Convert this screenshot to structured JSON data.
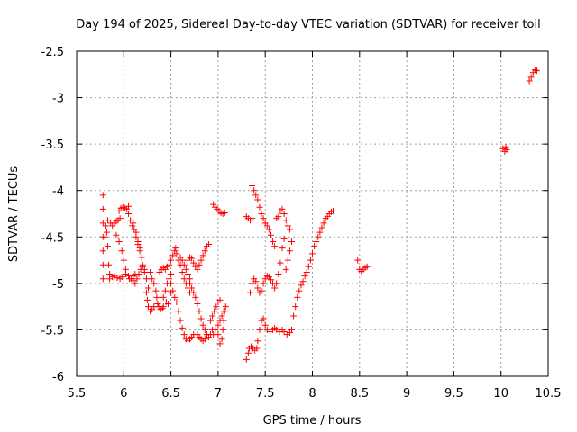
{
  "chart_data": {
    "type": "scatter",
    "title": "Day 194 of 2025, Sidereal Day-to-day VTEC variation (SDTVAR) for receiver toil",
    "xlabel": "GPS time / hours",
    "ylabel": "SDTVAR / TECUs",
    "xlim": [
      5.5,
      10.5
    ],
    "ylim": [
      -6,
      -2.5
    ],
    "x_ticks": [
      5.5,
      6,
      6.5,
      7,
      7.5,
      8,
      8.5,
      9,
      9.5,
      10,
      10.5
    ],
    "y_ticks": [
      -6,
      -5.5,
      -5,
      -4.5,
      -4,
      -3.5,
      -3,
      -2.5
    ],
    "x_tick_labels": [
      "5.5",
      "6",
      "6.5",
      "7",
      "7.5",
      "8",
      "8.5",
      "9",
      "9.5",
      "10",
      "10.5"
    ],
    "y_tick_labels": [
      "-6",
      "-5.5",
      "-5",
      "-4.5",
      "-4",
      "-3.5",
      "-3",
      "-2.5"
    ],
    "grid": true,
    "marker": "plus",
    "marker_color": "#ff0000",
    "series": [
      {
        "values": [
          [
            5.78,
            -4.05
          ],
          [
            5.78,
            -4.2
          ],
          [
            5.78,
            -4.35
          ],
          [
            5.78,
            -4.5
          ],
          [
            5.78,
            -4.65
          ],
          [
            5.78,
            -4.8
          ],
          [
            5.78,
            -4.95
          ],
          [
            5.8,
            -4.5
          ],
          [
            5.81,
            -4.38
          ],
          [
            5.82,
            -4.45
          ],
          [
            5.83,
            -4.6
          ],
          [
            5.84,
            -4.8
          ],
          [
            5.85,
            -4.9
          ],
          [
            5.83,
            -4.32
          ],
          [
            5.86,
            -4.35
          ],
          [
            5.88,
            -4.38
          ],
          [
            5.9,
            -4.35
          ],
          [
            5.92,
            -4.33
          ],
          [
            5.94,
            -4.32
          ],
          [
            5.96,
            -4.3
          ],
          [
            5.85,
            -4.95
          ],
          [
            5.88,
            -4.93
          ],
          [
            5.9,
            -4.92
          ],
          [
            5.93,
            -4.94
          ],
          [
            5.96,
            -4.95
          ],
          [
            5.98,
            -4.93
          ],
          [
            5.95,
            -4.22
          ],
          [
            5.97,
            -4.19
          ],
          [
            5.99,
            -4.18
          ],
          [
            6.01,
            -4.19
          ],
          [
            6.03,
            -4.2
          ],
          [
            6.05,
            -4.17
          ],
          [
            5.92,
            -4.48
          ],
          [
            5.95,
            -4.55
          ],
          [
            5.98,
            -4.65
          ],
          [
            6.0,
            -4.75
          ],
          [
            6.02,
            -4.85
          ],
          [
            6.05,
            -4.92
          ],
          [
            6.08,
            -4.95
          ],
          [
            6.1,
            -4.97
          ],
          [
            6.02,
            -4.9
          ],
          [
            6.06,
            -4.95
          ],
          [
            6.1,
            -4.92
          ],
          [
            6.12,
            -4.9
          ],
          [
            6.05,
            -4.25
          ],
          [
            6.07,
            -4.32
          ],
          [
            6.09,
            -4.38
          ],
          [
            6.11,
            -4.42
          ],
          [
            6.13,
            -4.5
          ],
          [
            6.15,
            -4.58
          ],
          [
            6.17,
            -4.65
          ],
          [
            6.19,
            -4.72
          ],
          [
            6.2,
            -4.8
          ],
          [
            6.22,
            -4.88
          ],
          [
            6.24,
            -4.95
          ],
          [
            6.26,
            -5.05
          ],
          [
            6.1,
            -4.35
          ],
          [
            6.13,
            -4.45
          ],
          [
            6.15,
            -4.55
          ],
          [
            6.17,
            -4.62
          ],
          [
            6.12,
            -5.0
          ],
          [
            6.14,
            -4.95
          ],
          [
            6.16,
            -4.9
          ],
          [
            6.18,
            -4.85
          ],
          [
            6.2,
            -4.82
          ],
          [
            6.22,
            -4.85
          ],
          [
            6.24,
            -5.1
          ],
          [
            6.25,
            -5.18
          ],
          [
            6.26,
            -5.25
          ],
          [
            6.28,
            -5.3
          ],
          [
            6.3,
            -5.28
          ],
          [
            6.32,
            -5.25
          ],
          [
            6.28,
            -4.88
          ],
          [
            6.3,
            -4.95
          ],
          [
            6.32,
            -5.0
          ],
          [
            6.34,
            -5.08
          ],
          [
            6.35,
            -5.15
          ],
          [
            6.36,
            -5.22
          ],
          [
            6.37,
            -5.25
          ],
          [
            6.39,
            -5.28
          ],
          [
            6.41,
            -5.27
          ],
          [
            6.42,
            -5.25
          ],
          [
            6.38,
            -4.88
          ],
          [
            6.4,
            -4.85
          ],
          [
            6.42,
            -4.83
          ],
          [
            6.44,
            -4.85
          ],
          [
            6.46,
            -4.82
          ],
          [
            6.48,
            -4.8
          ],
          [
            6.42,
            -5.15
          ],
          [
            6.44,
            -5.08
          ],
          [
            6.46,
            -5.0
          ],
          [
            6.48,
            -4.95
          ],
          [
            6.5,
            -4.9
          ],
          [
            6.45,
            -5.2
          ],
          [
            6.47,
            -5.22
          ],
          [
            6.5,
            -5.1
          ],
          [
            6.5,
            -4.75
          ],
          [
            6.52,
            -4.7
          ],
          [
            6.54,
            -4.65
          ],
          [
            6.55,
            -4.62
          ],
          [
            6.56,
            -4.68
          ],
          [
            6.58,
            -4.75
          ],
          [
            6.6,
            -4.8
          ],
          [
            6.62,
            -4.88
          ],
          [
            6.64,
            -4.95
          ],
          [
            6.66,
            -5.0
          ],
          [
            6.68,
            -5.05
          ],
          [
            6.7,
            -5.1
          ],
          [
            6.5,
            -5.0
          ],
          [
            6.52,
            -5.08
          ],
          [
            6.54,
            -5.15
          ],
          [
            6.56,
            -5.2
          ],
          [
            6.58,
            -5.3
          ],
          [
            6.6,
            -5.4
          ],
          [
            6.62,
            -5.48
          ],
          [
            6.64,
            -5.55
          ],
          [
            6.66,
            -5.6
          ],
          [
            6.68,
            -5.62
          ],
          [
            6.7,
            -5.6
          ],
          [
            6.72,
            -5.58
          ],
          [
            6.74,
            -5.55
          ],
          [
            6.6,
            -4.72
          ],
          [
            6.62,
            -4.75
          ],
          [
            6.64,
            -4.8
          ],
          [
            6.66,
            -4.85
          ],
          [
            6.68,
            -4.9
          ],
          [
            6.7,
            -4.95
          ],
          [
            6.68,
            -4.75
          ],
          [
            6.7,
            -4.72
          ],
          [
            6.72,
            -4.73
          ],
          [
            6.74,
            -4.78
          ],
          [
            6.76,
            -4.82
          ],
          [
            6.78,
            -4.85
          ],
          [
            6.7,
            -5.0
          ],
          [
            6.72,
            -5.05
          ],
          [
            6.74,
            -5.1
          ],
          [
            6.76,
            -5.15
          ],
          [
            6.78,
            -5.22
          ],
          [
            6.8,
            -5.3
          ],
          [
            6.82,
            -5.38
          ],
          [
            6.84,
            -5.45
          ],
          [
            6.86,
            -5.5
          ],
          [
            6.88,
            -5.55
          ],
          [
            6.9,
            -5.58
          ],
          [
            6.92,
            -5.55
          ],
          [
            6.94,
            -5.5
          ],
          [
            6.78,
            -5.55
          ],
          [
            6.8,
            -5.58
          ],
          [
            6.82,
            -5.6
          ],
          [
            6.84,
            -5.62
          ],
          [
            6.86,
            -5.6
          ],
          [
            6.88,
            -5.55
          ],
          [
            6.8,
            -4.8
          ],
          [
            6.82,
            -4.75
          ],
          [
            6.84,
            -4.7
          ],
          [
            6.86,
            -4.65
          ],
          [
            6.88,
            -4.6
          ],
          [
            6.9,
            -4.58
          ],
          [
            6.92,
            -5.4
          ],
          [
            6.94,
            -5.35
          ],
          [
            6.96,
            -5.3
          ],
          [
            6.98,
            -5.25
          ],
          [
            7.0,
            -5.2
          ],
          [
            7.02,
            -5.18
          ],
          [
            6.95,
            -5.55
          ],
          [
            6.97,
            -5.5
          ],
          [
            7.0,
            -5.45
          ],
          [
            7.02,
            -5.4
          ],
          [
            7.04,
            -5.35
          ],
          [
            7.06,
            -5.3
          ],
          [
            7.0,
            -5.55
          ],
          [
            7.02,
            -5.65
          ],
          [
            7.04,
            -5.6
          ],
          [
            7.05,
            -5.5
          ],
          [
            7.06,
            -5.4
          ],
          [
            7.07,
            -5.3
          ],
          [
            7.08,
            -5.25
          ],
          [
            6.95,
            -4.15
          ],
          [
            6.97,
            -4.18
          ],
          [
            6.99,
            -4.2
          ],
          [
            7.01,
            -4.22
          ],
          [
            7.03,
            -4.24
          ],
          [
            7.05,
            -4.25
          ],
          [
            7.07,
            -4.24
          ],
          [
            7.3,
            -4.28
          ],
          [
            7.32,
            -4.3
          ],
          [
            7.34,
            -4.32
          ],
          [
            7.36,
            -4.3
          ],
          [
            7.3,
            -5.82
          ],
          [
            7.32,
            -5.75
          ],
          [
            7.33,
            -5.7
          ],
          [
            7.35,
            -5.68
          ],
          [
            7.37,
            -5.7
          ],
          [
            7.39,
            -5.72
          ],
          [
            7.41,
            -5.7
          ],
          [
            7.36,
            -3.95
          ],
          [
            7.38,
            -4.0
          ],
          [
            7.4,
            -4.05
          ],
          [
            7.42,
            -4.1
          ],
          [
            7.44,
            -4.18
          ],
          [
            7.46,
            -4.25
          ],
          [
            7.48,
            -4.3
          ],
          [
            7.5,
            -4.35
          ],
          [
            7.52,
            -4.38
          ],
          [
            7.54,
            -4.42
          ],
          [
            7.56,
            -4.48
          ],
          [
            7.58,
            -4.55
          ],
          [
            7.6,
            -4.6
          ],
          [
            7.34,
            -5.1
          ],
          [
            7.36,
            -5.0
          ],
          [
            7.38,
            -4.95
          ],
          [
            7.4,
            -4.98
          ],
          [
            7.42,
            -5.05
          ],
          [
            7.44,
            -5.1
          ],
          [
            7.46,
            -5.08
          ],
          [
            7.48,
            -5.0
          ],
          [
            7.5,
            -4.95
          ],
          [
            7.52,
            -4.92
          ],
          [
            7.54,
            -4.93
          ],
          [
            7.56,
            -4.96
          ],
          [
            7.58,
            -5.0
          ],
          [
            7.6,
            -5.05
          ],
          [
            7.62,
            -5.0
          ],
          [
            7.64,
            -4.9
          ],
          [
            7.66,
            -4.78
          ],
          [
            7.68,
            -4.62
          ],
          [
            7.7,
            -4.52
          ],
          [
            7.42,
            -5.62
          ],
          [
            7.44,
            -5.5
          ],
          [
            7.46,
            -5.4
          ],
          [
            7.48,
            -5.38
          ],
          [
            7.5,
            -5.45
          ],
          [
            7.52,
            -5.5
          ],
          [
            7.55,
            -5.52
          ],
          [
            7.58,
            -5.5
          ],
          [
            7.6,
            -5.48
          ],
          [
            7.62,
            -5.5
          ],
          [
            7.65,
            -5.52
          ],
          [
            7.68,
            -5.5
          ],
          [
            7.7,
            -5.52
          ],
          [
            7.73,
            -5.55
          ],
          [
            7.76,
            -5.53
          ],
          [
            7.78,
            -5.5
          ],
          [
            7.62,
            -4.3
          ],
          [
            7.64,
            -4.28
          ],
          [
            7.66,
            -4.22
          ],
          [
            7.68,
            -4.2
          ],
          [
            7.7,
            -4.25
          ],
          [
            7.72,
            -4.32
          ],
          [
            7.74,
            -4.38
          ],
          [
            7.76,
            -4.42
          ],
          [
            7.72,
            -4.85
          ],
          [
            7.74,
            -4.75
          ],
          [
            7.76,
            -4.65
          ],
          [
            7.78,
            -4.55
          ],
          [
            7.8,
            -5.35
          ],
          [
            7.82,
            -5.25
          ],
          [
            7.84,
            -5.15
          ],
          [
            7.86,
            -5.08
          ],
          [
            7.88,
            -5.02
          ],
          [
            7.9,
            -4.98
          ],
          [
            7.92,
            -4.92
          ],
          [
            7.94,
            -4.88
          ],
          [
            7.96,
            -4.82
          ],
          [
            7.98,
            -4.75
          ],
          [
            8.0,
            -4.68
          ],
          [
            8.02,
            -4.6
          ],
          [
            8.04,
            -4.55
          ],
          [
            8.06,
            -4.5
          ],
          [
            8.08,
            -4.45
          ],
          [
            8.1,
            -4.4
          ],
          [
            8.12,
            -4.35
          ],
          [
            8.14,
            -4.3
          ],
          [
            8.16,
            -4.28
          ],
          [
            8.18,
            -4.25
          ],
          [
            8.2,
            -4.23
          ],
          [
            8.22,
            -4.22
          ],
          [
            8.48,
            -4.75
          ],
          [
            8.5,
            -4.85
          ],
          [
            8.52,
            -4.87
          ],
          [
            8.54,
            -4.85
          ],
          [
            8.56,
            -4.83
          ],
          [
            8.58,
            -4.82
          ],
          [
            10.02,
            -3.55
          ],
          [
            10.04,
            -3.58
          ],
          [
            10.06,
            -3.56
          ],
          [
            10.05,
            -3.53
          ],
          [
            10.3,
            -2.82
          ],
          [
            10.32,
            -2.78
          ],
          [
            10.34,
            -2.73
          ],
          [
            10.36,
            -2.7
          ],
          [
            10.38,
            -2.71
          ]
        ]
      }
    ]
  }
}
